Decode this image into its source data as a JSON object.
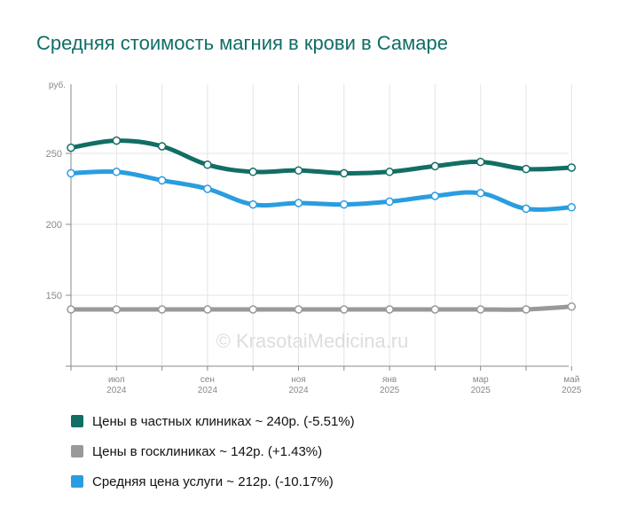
{
  "title": "Средняя стоимость магния в крови в Самаре",
  "watermark": "© KrasotaiMedicina.ru",
  "chart_data": {
    "type": "line",
    "ylabel": "руб.",
    "ylim": [
      100,
      300
    ],
    "yticks": [
      150,
      200,
      250
    ],
    "grid": true,
    "x": [
      "2024-06",
      "2024-07",
      "2024-08",
      "2024-09",
      "2024-10",
      "2024-11",
      "2024-12",
      "2025-01",
      "2025-02",
      "2025-03",
      "2025-04",
      "2025-05"
    ],
    "xticks": [
      {
        "month": "июл",
        "year": "2024",
        "at": "2024-07"
      },
      {
        "month": "сен",
        "year": "2024",
        "at": "2024-09"
      },
      {
        "month": "ноя",
        "year": "2024",
        "at": "2024-11"
      },
      {
        "month": "янв",
        "year": "2025",
        "at": "2025-01"
      },
      {
        "month": "мар",
        "year": "2025",
        "at": "2025-03"
      },
      {
        "month": "май",
        "year": "2025",
        "at": "2025-05"
      }
    ],
    "series": [
      {
        "name": "Цены в частных клиниках ~ 240р. (-5.51%)",
        "color": "#126e64",
        "values": [
          254,
          259,
          255,
          242,
          237,
          238,
          236,
          237,
          241,
          244,
          239,
          240
        ]
      },
      {
        "name": "Цены в госклиниках ~ 142р. (+1.43%)",
        "color": "#999999",
        "values": [
          140,
          140,
          140,
          140,
          140,
          140,
          140,
          140,
          140,
          140,
          140,
          142
        ]
      },
      {
        "name": "Средняя цена услуги ~ 212р. (-10.17%)",
        "color": "#2a9de0",
        "values": [
          236,
          237,
          231,
          225,
          214,
          215,
          214,
          216,
          220,
          222,
          211,
          212
        ]
      }
    ]
  }
}
